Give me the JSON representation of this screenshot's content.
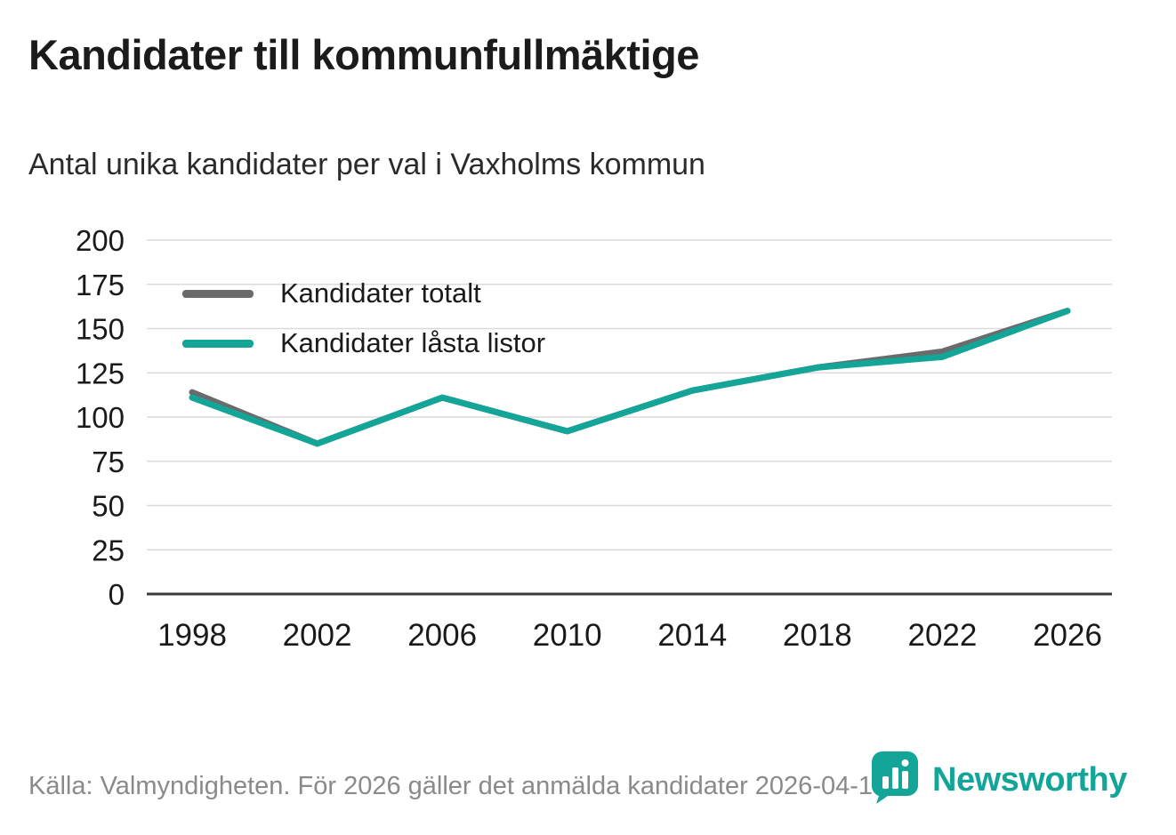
{
  "header": {
    "title": "Kandidater till kommunfullmäktige",
    "subtitle": "Antal unika kandidater per val i Vaxholms kommun"
  },
  "footer": {
    "source": "Källa: Valmyndigheten. För 2026 gäller det anmälda kandidater 2026-04-10.",
    "brand": "Newsworthy"
  },
  "colors": {
    "teal": "#13A597",
    "gray": "#6B6B6B",
    "grid": "#DBDBDB",
    "axis": "#3A3A3A",
    "text": "#1A1A1A",
    "muted": "#8A8A8A"
  },
  "chart_data": {
    "type": "line",
    "x": [
      1998,
      2002,
      2006,
      2010,
      2014,
      2018,
      2022,
      2026
    ],
    "series": [
      {
        "name": "Kandidater totalt",
        "color_key": "gray",
        "values": [
          114,
          85,
          111,
          92,
          115,
          128,
          137,
          160
        ]
      },
      {
        "name": "Kandidater låsta listor",
        "color_key": "teal",
        "values": [
          111,
          85,
          111,
          92,
          115,
          128,
          134,
          160
        ]
      }
    ],
    "title": "Kandidater till kommunfullmäktige",
    "subtitle": "Antal unika kandidater per val i Vaxholms kommun",
    "xlabel": "",
    "ylabel": "",
    "ylim": [
      0,
      200
    ],
    "yticks": [
      0,
      25,
      50,
      75,
      100,
      125,
      150,
      175,
      200
    ],
    "xticks": [
      1998,
      2002,
      2006,
      2010,
      2014,
      2018,
      2022,
      2026
    ],
    "grid": "horizontal",
    "legend_position": "top-left-inside"
  }
}
